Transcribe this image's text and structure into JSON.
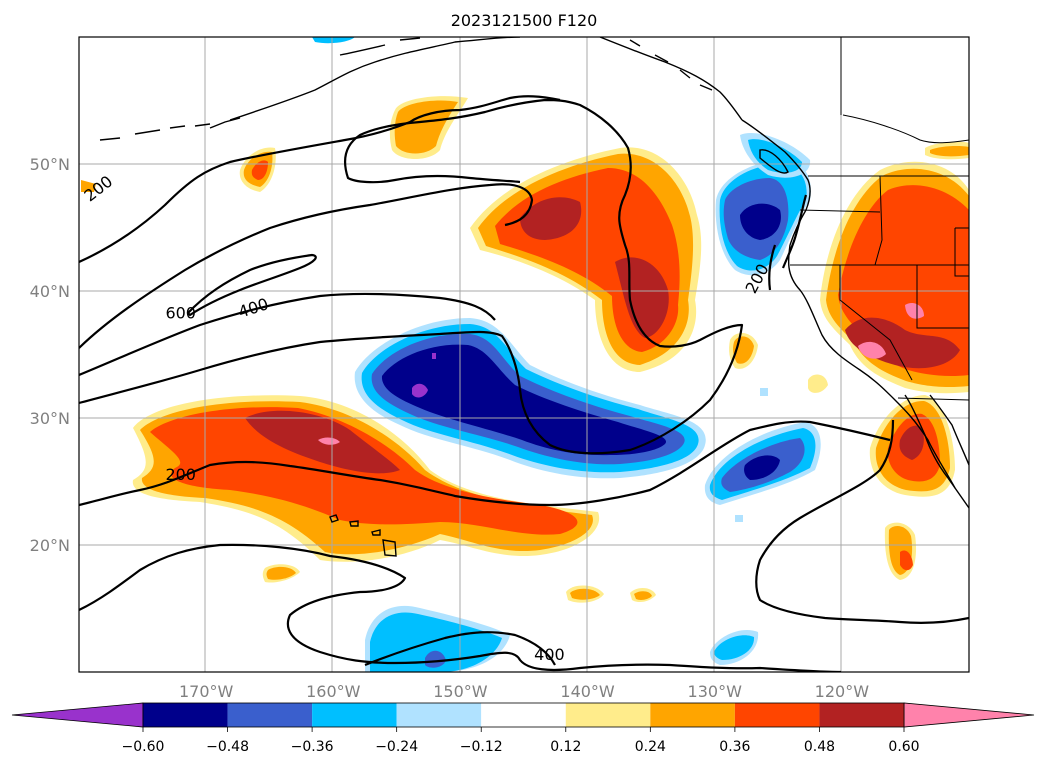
{
  "chart_data": {
    "type": "heatmap",
    "title": "2023121500 F120",
    "map_extent": {
      "lon": [
        -180,
        -110
      ],
      "lat": [
        10,
        60
      ]
    },
    "xticks": [
      {
        "lon": -170,
        "label": "170°W"
      },
      {
        "lon": -160,
        "label": "160°W"
      },
      {
        "lon": -150,
        "label": "150°W"
      },
      {
        "lon": -140,
        "label": "140°W"
      },
      {
        "lon": -130,
        "label": "130°W"
      },
      {
        "lon": -120,
        "label": "120°W"
      }
    ],
    "yticks": [
      {
        "lat": 50,
        "label": "50°N"
      },
      {
        "lat": 40,
        "label": "40°N"
      },
      {
        "lat": 30,
        "label": "30°N"
      },
      {
        "lat": 20,
        "label": "20°N"
      }
    ],
    "grid": true,
    "colorbar": {
      "orientation": "horizontal",
      "extend": "both",
      "levels": [
        -0.6,
        -0.48,
        -0.36,
        -0.24,
        -0.12,
        0.12,
        0.24,
        0.36,
        0.48,
        0.6
      ],
      "tick_labels": [
        "−0.60",
        "−0.48",
        "−0.36",
        "−0.24",
        "−0.12",
        "0.12",
        "0.24",
        "0.36",
        "0.48",
        "0.60"
      ],
      "colors": [
        "#9932cc",
        "#00008b",
        "#3a5fcd",
        "#00bfff",
        "#b0e2ff",
        "#ffffff",
        "#ffec8b",
        "#ffa500",
        "#ff4500",
        "#b22222",
        "#ff82ab"
      ]
    },
    "contour_labels": [
      {
        "text": "200",
        "lon": -178.5,
        "lat": 48.1,
        "rotate": -38
      },
      {
        "text": "600",
        "lon": -172.0,
        "lat": 38.3,
        "rotate": 0
      },
      {
        "text": "400",
        "lon": -166.3,
        "lat": 38.7,
        "rotate": -18
      },
      {
        "text": "200",
        "lon": -172.0,
        "lat": 25.6,
        "rotate": 0
      },
      {
        "text": "200",
        "lon": -126.7,
        "lat": 41.0,
        "rotate": -62
      },
      {
        "text": "400",
        "lon": -143.0,
        "lat": 11.4,
        "rotate": 0
      }
    ]
  }
}
